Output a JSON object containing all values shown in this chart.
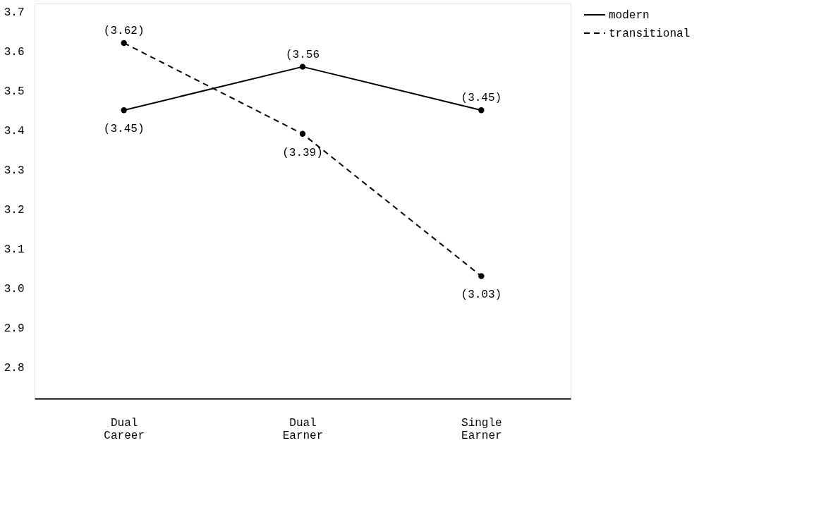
{
  "chart_data": {
    "type": "line",
    "categories": [
      "Dual Career",
      "Dual Earner",
      "Single Earner"
    ],
    "series": [
      {
        "name": "modern",
        "color": "#000000",
        "line_style": "solid",
        "values": [
          3.45,
          3.56,
          3.45
        ],
        "value_labels": [
          "(3.45)",
          "(3.56",
          "(3.45)"
        ]
      },
      {
        "name": "transitional",
        "color": "#000000",
        "line_style": "dashed",
        "values": [
          3.62,
          3.39,
          3.03
        ],
        "value_labels": [
          "(3.62)",
          "(3.39)",
          "(3.03)"
        ]
      }
    ],
    "ylim": [
      2.72,
      3.72
    ],
    "yticks": [
      {
        "value": 2.8,
        "label": "2.8"
      },
      {
        "value": 2.9,
        "label": "2.9"
      },
      {
        "value": 3,
        "label": "3.0"
      },
      {
        "value": 3.1,
        "label": "3.1"
      },
      {
        "value": 3.2,
        "label": "3.2"
      },
      {
        "value": 3.3,
        "label": "3.3"
      },
      {
        "value": 3.4,
        "label": "3.4"
      },
      {
        "value": 3.5,
        "label": "3.5"
      },
      {
        "value": 3.6,
        "label": "3.6"
      },
      {
        "value": 3.7,
        "label": "3.7"
      }
    ],
    "marker": "circle",
    "grid": false,
    "legend": "right"
  }
}
